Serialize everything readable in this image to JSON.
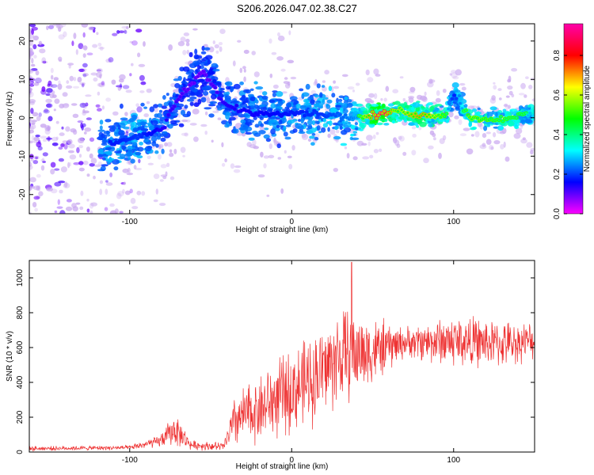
{
  "title": "S206.2026.047.02.38.C27",
  "chart_data": [
    {
      "type": "heatmap",
      "name": "spectrogram",
      "xlabel": "Height of straight line (km)",
      "ylabel": "Frequency (Hz)",
      "xlim": [
        -162,
        150
      ],
      "ylim": [
        -25,
        24.5
      ],
      "xticks": [
        -100,
        0,
        100
      ],
      "yticks": [
        -20,
        -10,
        0,
        10,
        20
      ],
      "colorbar": {
        "label": "Normalized spectral amplitude",
        "range": [
          0.0,
          0.96
        ],
        "ticks": [
          0.0,
          0.2,
          0.4,
          0.6,
          0.8
        ],
        "colormap": [
          "#ff00ff",
          "#0000ff",
          "#00ffff",
          "#00ff00",
          "#ffff00",
          "#ff0000",
          "#ff00aa"
        ]
      },
      "ridge": [
        {
          "x": -110,
          "y": -6.5,
          "amp": 0.35
        },
        {
          "x": -95,
          "y": -5,
          "amp": 0.38
        },
        {
          "x": -80,
          "y": -3,
          "amp": 0.3
        },
        {
          "x": -70,
          "y": 5,
          "amp": 0.25
        },
        {
          "x": -55,
          "y": 12,
          "amp": 0.2
        },
        {
          "x": -40,
          "y": 3,
          "amp": 0.3
        },
        {
          "x": -20,
          "y": 1,
          "amp": 0.32
        },
        {
          "x": 0,
          "y": 1.5,
          "amp": 0.35
        },
        {
          "x": 20,
          "y": 1,
          "amp": 0.38
        },
        {
          "x": 40,
          "y": 0,
          "amp": 0.45
        },
        {
          "x": 55,
          "y": 0.8,
          "amp": 0.96
        },
        {
          "x": 65,
          "y": 2,
          "amp": 0.6
        },
        {
          "x": 80,
          "y": 0.5,
          "amp": 0.75
        },
        {
          "x": 95,
          "y": 0.8,
          "amp": 0.55
        },
        {
          "x": 100,
          "y": 6,
          "amp": 0.35
        },
        {
          "x": 110,
          "y": 0,
          "amp": 0.6
        },
        {
          "x": 125,
          "y": -0.5,
          "amp": 0.55
        },
        {
          "x": 145,
          "y": 0.8,
          "amp": 0.5
        }
      ]
    },
    {
      "type": "line",
      "name": "snr",
      "xlabel": "Height of straight line (km)",
      "ylabel": "SNR (10 * v/v)",
      "xlim": [
        -162,
        150
      ],
      "ylim": [
        0,
        1100
      ],
      "xticks": [
        -100,
        0,
        100
      ],
      "yticks": [
        0,
        200,
        400,
        600,
        800,
        1000
      ],
      "color": "#ee3333",
      "envelope": [
        {
          "x": -162,
          "mean": 20,
          "spread": 15
        },
        {
          "x": -100,
          "mean": 25,
          "spread": 15
        },
        {
          "x": -82,
          "mean": 60,
          "spread": 40
        },
        {
          "x": -72,
          "mean": 130,
          "spread": 110
        },
        {
          "x": -62,
          "mean": 40,
          "spread": 30
        },
        {
          "x": -42,
          "mean": 30,
          "spread": 30
        },
        {
          "x": -35,
          "mean": 180,
          "spread": 180
        },
        {
          "x": -10,
          "mean": 300,
          "spread": 260
        },
        {
          "x": 10,
          "mean": 400,
          "spread": 300
        },
        {
          "x": 30,
          "mean": 550,
          "spread": 330
        },
        {
          "x": 50,
          "mean": 580,
          "spread": 230
        },
        {
          "x": 70,
          "mean": 630,
          "spread": 100
        },
        {
          "x": 100,
          "mean": 640,
          "spread": 180
        },
        {
          "x": 130,
          "mean": 620,
          "spread": 150
        },
        {
          "x": 150,
          "mean": 640,
          "spread": 120
        }
      ],
      "peak": {
        "x": 37,
        "value": 1090
      }
    }
  ]
}
